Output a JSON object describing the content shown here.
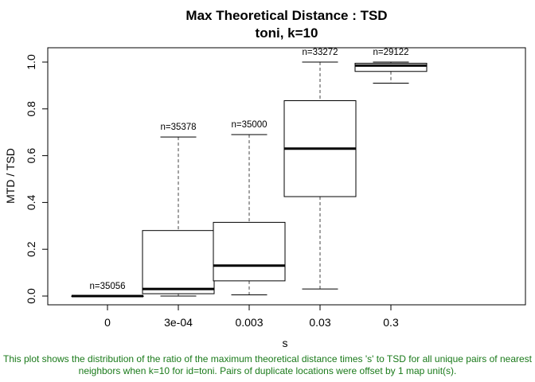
{
  "chart_data": {
    "type": "box",
    "title": "Max Theoretical Distance : TSD",
    "subtitle": "toni, k=10",
    "xlabel": "s",
    "ylabel": "MTD / TSD",
    "ylim": [
      -0.03,
      1.07
    ],
    "yticks": [
      "0.0",
      "0.2",
      "0.4",
      "0.6",
      "0.8",
      "1.0"
    ],
    "categories": [
      "0",
      "3e-04",
      "0.003",
      "0.03",
      "0.3"
    ],
    "boxes": [
      {
        "category": "0",
        "min": 0.0,
        "q1": 0.0,
        "median": 0.0,
        "q3": 0.0,
        "max": 0.0,
        "n_label": "n=35056"
      },
      {
        "category": "3e-04",
        "min": 0.0,
        "q1": 0.01,
        "median": 0.03,
        "q3": 0.28,
        "max": 0.68,
        "n_label": "n=35378"
      },
      {
        "category": "0.003",
        "min": 0.005,
        "q1": 0.065,
        "median": 0.13,
        "q3": 0.315,
        "max": 0.69,
        "n_label": "n=35000"
      },
      {
        "category": "0.03",
        "min": 0.03,
        "q1": 0.425,
        "median": 0.63,
        "q3": 0.835,
        "max": 1.0,
        "n_label": "n=33272"
      },
      {
        "category": "0.3",
        "min": 0.91,
        "q1": 0.96,
        "median": 0.985,
        "q3": 0.995,
        "max": 1.0,
        "n_label": "n=29122"
      }
    ]
  },
  "caption": "This plot shows the distribution of the ratio of the maximum theoretical distance times 's' to TSD for all unique pairs of nearest neighbors when k=10 for id=toni. Pairs of duplicate locations were offset by 1 map unit(s).",
  "colors": {
    "caption": "#1a7a1a",
    "box_line": "#000000"
  }
}
